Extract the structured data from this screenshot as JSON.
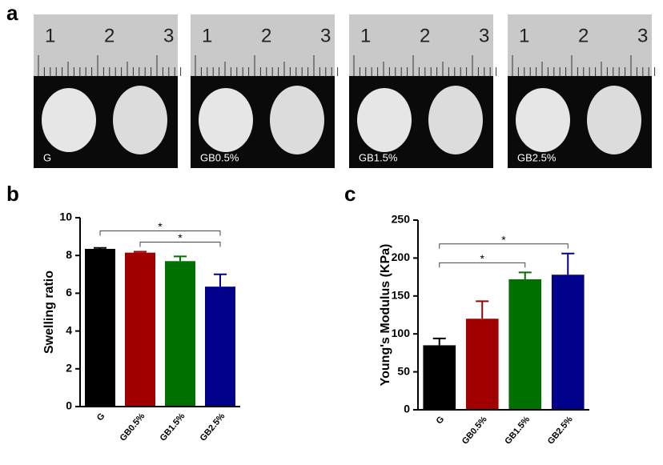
{
  "photos": {
    "panel": "a",
    "ruler_numbers": [
      "1",
      "2",
      "3"
    ],
    "labels": [
      "G",
      "GB0.5%",
      "GB1.5%",
      "GB2.5%"
    ]
  },
  "chart_data": [
    {
      "type": "bar",
      "panel": "b",
      "ylabel": "Swelling ratio",
      "categories": [
        "G",
        "GB0.5%",
        "GB1.5%",
        "GB2.5%"
      ],
      "values": [
        8.35,
        8.15,
        7.7,
        6.35
      ],
      "errors": [
        0.05,
        0.05,
        0.25,
        0.65
      ],
      "colors": [
        "#000000",
        "#a00000",
        "#007000",
        "#00008b"
      ],
      "ylim": [
        0,
        10
      ],
      "yticks": [
        0,
        2,
        4,
        6,
        8,
        10
      ],
      "annotations": [
        {
          "text": "*",
          "from": 0,
          "to": 3
        },
        {
          "text": "*",
          "from": 1,
          "to": 3
        }
      ]
    },
    {
      "type": "bar",
      "panel": "c",
      "ylabel": "Young's  Modulus  (KPa)",
      "categories": [
        "G",
        "GB0.5%",
        "GB1.5%",
        "GB2.5%"
      ],
      "values": [
        85,
        120,
        172,
        178
      ],
      "errors": [
        9,
        23,
        9,
        28
      ],
      "colors": [
        "#000000",
        "#a00000",
        "#007000",
        "#00008b"
      ],
      "ylim": [
        0,
        250
      ],
      "yticks": [
        0,
        50,
        100,
        150,
        200,
        250
      ],
      "annotations": [
        {
          "text": "*",
          "from": 0,
          "to": 3
        },
        {
          "text": "*",
          "from": 0,
          "to": 2
        }
      ]
    }
  ]
}
